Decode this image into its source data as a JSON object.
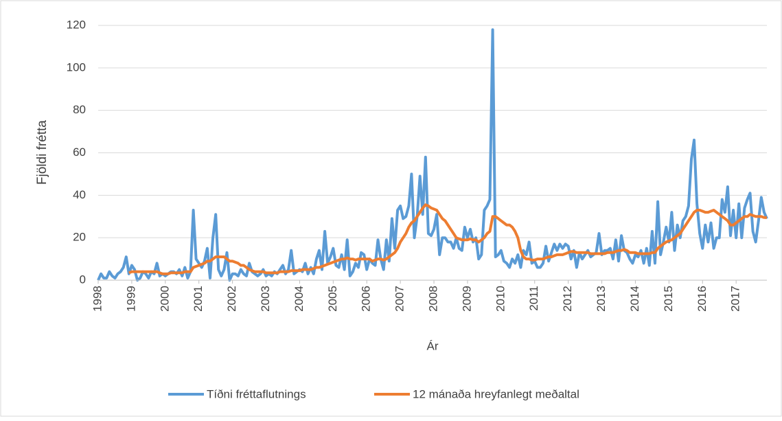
{
  "chart_data": {
    "type": "line",
    "xlabel": "Ár",
    "ylabel": "Fjöldi frétta",
    "categories": [
      "1998",
      null,
      null,
      null,
      null,
      null,
      null,
      null,
      null,
      null,
      null,
      null,
      "1999",
      null,
      null,
      null,
      null,
      null,
      null,
      null,
      null,
      null,
      null,
      null,
      "2000",
      null,
      null,
      null,
      null,
      null,
      null,
      null,
      null,
      null,
      null,
      null,
      "2001",
      null,
      null,
      null,
      null,
      null,
      null,
      null,
      null,
      null,
      null,
      null,
      "2002",
      null,
      null,
      null,
      null,
      null,
      null,
      null,
      null,
      null,
      null,
      null,
      "2003",
      null,
      null,
      null,
      null,
      null,
      null,
      null,
      null,
      null,
      null,
      null,
      "2004",
      null,
      null,
      null,
      null,
      null,
      null,
      null,
      null,
      null,
      null,
      null,
      "2005",
      null,
      null,
      null,
      null,
      null,
      null,
      null,
      null,
      null,
      null,
      null,
      "2006",
      null,
      null,
      null,
      null,
      null,
      null,
      null,
      null,
      null,
      null,
      null,
      "2007",
      null,
      null,
      null,
      null,
      null,
      null,
      null,
      null,
      null,
      null,
      null,
      "2008",
      null,
      null,
      null,
      null,
      null,
      null,
      null,
      null,
      null,
      null,
      null,
      "2009",
      null,
      null,
      null,
      null,
      null,
      null,
      null,
      null,
      null,
      null,
      null,
      "2010",
      null,
      null,
      null,
      null,
      null,
      null,
      null,
      null,
      null,
      null,
      null,
      "2011",
      null,
      null,
      null,
      null,
      null,
      null,
      null,
      null,
      null,
      null,
      null,
      "2012",
      null,
      null,
      null,
      null,
      null,
      null,
      null,
      null,
      null,
      null,
      null,
      "2013",
      null,
      null,
      null,
      null,
      null,
      null,
      null,
      null,
      null,
      null,
      null,
      "2014",
      null,
      null,
      null,
      null,
      null,
      null,
      null,
      null,
      null,
      null,
      null,
      "2015",
      null,
      null,
      null,
      null,
      null,
      null,
      null,
      null,
      null,
      null,
      null,
      "2016",
      null,
      null,
      null,
      null,
      null,
      null,
      null,
      null,
      null,
      null,
      null,
      "2017",
      null,
      null,
      null,
      null,
      null,
      null,
      null,
      null,
      null,
      null,
      null
    ],
    "series": [
      {
        "name": "Tíðni fréttaflutnings",
        "color": "#5b9bd5",
        "values": [
          0,
          3,
          1,
          1,
          4,
          2,
          1,
          3,
          4,
          6,
          11,
          3,
          7,
          5,
          0,
          1,
          4,
          3,
          1,
          4,
          3,
          8,
          2,
          3,
          2,
          3,
          4,
          4,
          3,
          5,
          2,
          6,
          1,
          4,
          33,
          10,
          8,
          6,
          9,
          15,
          1,
          20,
          31,
          5,
          2,
          5,
          13,
          0,
          3,
          3,
          2,
          5,
          3,
          2,
          8,
          4,
          3,
          2,
          3,
          5,
          2,
          3,
          2,
          4,
          3,
          5,
          7,
          3,
          5,
          14,
          3,
          4,
          5,
          4,
          8,
          3,
          6,
          3,
          10,
          14,
          5,
          23,
          8,
          11,
          15,
          7,
          6,
          12,
          5,
          19,
          2,
          4,
          8,
          6,
          13,
          12,
          5,
          10,
          8,
          7,
          19,
          10,
          5,
          19,
          9,
          29,
          15,
          33,
          35,
          29,
          30,
          35,
          50,
          20,
          30,
          49,
          31,
          58,
          22,
          21,
          24,
          31,
          12,
          20,
          20,
          18,
          18,
          15,
          20,
          15,
          14,
          25,
          20,
          24,
          18,
          20,
          10,
          12,
          33,
          35,
          38,
          118,
          11,
          12,
          14,
          9,
          8,
          6,
          10,
          8,
          12,
          6,
          14,
          12,
          18,
          8,
          9,
          6,
          6,
          8,
          16,
          9,
          13,
          17,
          14,
          17,
          15,
          17,
          16,
          10,
          14,
          6,
          13,
          10,
          12,
          14,
          11,
          12,
          13,
          22,
          12,
          14,
          14,
          15,
          10,
          19,
          9,
          21,
          14,
          13,
          10,
          8,
          12,
          11,
          14,
          8,
          15,
          7,
          23,
          8,
          37,
          12,
          18,
          25,
          18,
          32,
          14,
          26,
          20,
          28,
          30,
          35,
          57,
          66,
          36,
          22,
          15,
          26,
          18,
          27,
          15,
          20,
          20,
          38,
          32,
          44,
          21,
          33,
          20,
          36,
          20,
          34,
          38,
          41,
          23,
          18,
          28,
          39,
          32,
          29
        ]
      },
      {
        "name": "12 mánaða hreyfanlegt meðaltal",
        "color": "#ed7d31",
        "values": [
          null,
          null,
          null,
          null,
          null,
          null,
          null,
          null,
          null,
          null,
          null,
          3.5,
          4,
          4,
          4,
          4,
          4,
          4,
          4,
          4,
          4,
          4,
          3.5,
          3,
          3,
          3,
          3.5,
          3.5,
          3.5,
          3.5,
          3.5,
          4,
          4,
          4,
          6,
          6.5,
          7,
          7.5,
          8,
          9,
          9,
          10,
          11,
          11,
          11,
          11,
          10,
          9,
          9,
          8.5,
          8,
          7,
          7,
          6,
          5,
          4.5,
          4,
          4,
          4,
          4,
          3.5,
          3.5,
          3.5,
          3.5,
          3.5,
          4,
          4,
          4,
          4,
          4.5,
          4.5,
          4.5,
          4.5,
          5,
          5,
          5,
          5,
          5.5,
          6,
          6,
          6.5,
          7,
          7.5,
          8,
          8.5,
          9,
          9.5,
          10,
          10,
          10.5,
          10,
          10,
          9.5,
          10,
          10,
          10,
          10,
          10,
          9,
          9.5,
          10,
          10,
          9.5,
          10,
          11,
          12,
          13,
          15,
          18,
          20,
          22,
          25,
          27,
          28,
          30,
          32,
          34,
          35.5,
          35,
          34,
          33.5,
          33,
          31,
          29,
          28,
          26,
          24,
          22,
          20,
          19.5,
          19,
          19,
          19,
          19.5,
          19,
          19,
          18,
          19,
          20,
          22,
          23,
          30,
          30,
          29,
          28,
          27,
          26,
          26,
          25,
          23,
          20,
          14,
          11,
          10,
          10,
          9.5,
          9.5,
          10,
          10,
          10,
          10.5,
          11,
          11,
          11.5,
          12,
          12,
          12,
          12.5,
          13,
          13.5,
          13.5,
          13,
          13,
          13,
          13,
          13,
          12.5,
          12.5,
          12.5,
          12.5,
          12.5,
          12.5,
          13,
          13,
          13,
          13.5,
          14,
          14,
          14.5,
          14,
          13,
          13,
          13,
          12.5,
          12.5,
          12.5,
          12.5,
          12.5,
          13,
          13,
          15,
          16,
          17,
          18,
          18.5,
          19,
          20,
          21,
          22,
          24,
          26,
          28,
          30,
          32,
          33,
          33,
          32.5,
          32,
          32,
          32.5,
          33,
          32,
          31,
          30,
          29,
          28,
          26,
          26,
          27,
          28,
          29,
          30,
          30,
          31,
          30.5,
          30,
          30,
          30,
          29.5,
          29.5
        ]
      }
    ],
    "ylim": [
      0,
      120
    ],
    "yticks": [
      0,
      20,
      40,
      60,
      80,
      100,
      120
    ],
    "grid": true,
    "legend": "bottom"
  }
}
